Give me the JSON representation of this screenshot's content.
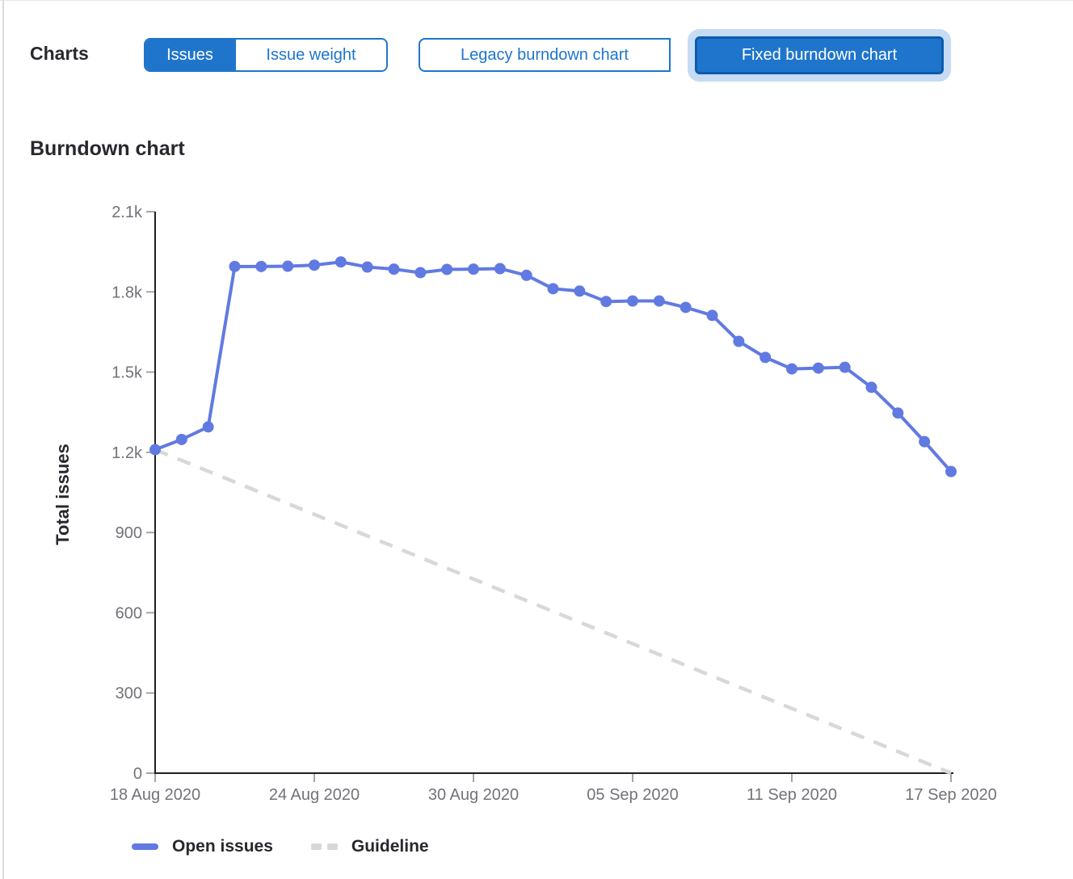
{
  "page": {
    "charts_label": "Charts",
    "section_title": "Burndown chart"
  },
  "toggles": {
    "metric_group": [
      {
        "label": "Issues",
        "selected": true
      },
      {
        "label": "Issue weight",
        "selected": false
      }
    ],
    "version_group": [
      {
        "label": "Legacy burndown chart",
        "selected": false
      },
      {
        "label": "Fixed burndown chart",
        "selected": true
      }
    ]
  },
  "colors": {
    "button_blue": "#1f75cb",
    "button_selected_border": "#0b5cad",
    "focus_ring": "#c6dbf4",
    "series_blue": "#617ae2",
    "guideline_gray": "#d8d8d8",
    "axis_line": "#1f1f1e",
    "tick_mark": "#a5a5a5",
    "tick_label": "#737278"
  },
  "chart_data": {
    "type": "line",
    "title": "Burndown chart",
    "xlabel": "",
    "ylabel": "Total issues",
    "ylim": [
      0,
      2100
    ],
    "grid": false,
    "legend_position": "bottom",
    "ytick_values": [
      0,
      300,
      600,
      900,
      1200,
      1500,
      1800,
      2100
    ],
    "ytick_labels": [
      "0",
      "300",
      "600",
      "900",
      "1.2k",
      "1.5k",
      "1.8k",
      "2.1k"
    ],
    "xtick_labels": [
      "18 Aug 2020",
      "24 Aug 2020",
      "30 Aug 2020",
      "05 Sep 2020",
      "11 Sep 2020",
      "17 Sep 2020"
    ],
    "xtick_day_indices": [
      0,
      6,
      12,
      18,
      24,
      30
    ],
    "dates": [
      "18 Aug",
      "19 Aug",
      "20 Aug",
      "21 Aug",
      "22 Aug",
      "23 Aug",
      "24 Aug",
      "25 Aug",
      "26 Aug",
      "27 Aug",
      "28 Aug",
      "29 Aug",
      "30 Aug",
      "31 Aug",
      "01 Sep",
      "02 Sep",
      "03 Sep",
      "04 Sep",
      "05 Sep",
      "06 Sep",
      "07 Sep",
      "08 Sep",
      "09 Sep",
      "10 Sep",
      "11 Sep",
      "12 Sep",
      "13 Sep",
      "14 Sep",
      "15 Sep",
      "16 Sep",
      "17 Sep"
    ],
    "series": [
      {
        "name": "Open issues",
        "style": "solid",
        "color": "#617ae2",
        "values": [
          1210,
          1248,
          1295,
          1895,
          1895,
          1896,
          1900,
          1912,
          1893,
          1885,
          1872,
          1884,
          1885,
          1887,
          1862,
          1812,
          1803,
          1764,
          1766,
          1766,
          1742,
          1712,
          1615,
          1555,
          1512,
          1515,
          1518,
          1443,
          1347,
          1240,
          1128
        ]
      },
      {
        "name": "Guideline",
        "style": "dashed",
        "color": "#d8d8d8",
        "x_days": [
          0,
          30
        ],
        "values": [
          1210,
          0
        ]
      }
    ]
  }
}
